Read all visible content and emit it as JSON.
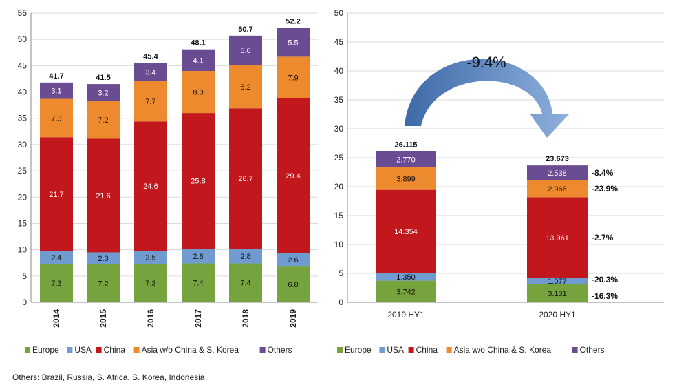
{
  "colors": {
    "Europe": "#77a33e",
    "USA": "#6f9bd1",
    "China": "#c2171d",
    "Asia w/o China & S. Korea": "#ee8a2e",
    "Others": "#6a4c93",
    "grid": "#d9d9d9",
    "arrow_light": "#8fb0dc",
    "arrow_dark": "#3d6aa8"
  },
  "chart_data": [
    {
      "type": "bar",
      "stacked": true,
      "categories": [
        "2014",
        "2015",
        "2016",
        "2017",
        "2018",
        "2019"
      ],
      "series": [
        {
          "name": "Europe",
          "values": [
            7.3,
            7.2,
            7.3,
            7.4,
            7.4,
            6.8
          ],
          "labels": [
            "7.3",
            "7.2",
            "7.3",
            "7.4",
            "7.4",
            "6.8"
          ]
        },
        {
          "name": "USA",
          "values": [
            2.4,
            2.3,
            2.5,
            2.8,
            2.8,
            2.6
          ],
          "labels": [
            "2.4",
            "2.3",
            "2.5",
            "2.8",
            "2.8",
            "2.6"
          ]
        },
        {
          "name": "China",
          "values": [
            21.7,
            21.6,
            24.6,
            25.8,
            26.7,
            29.4
          ],
          "labels": [
            "21.7",
            "21.6",
            "24.6",
            "25.8",
            "26.7",
            "29.4"
          ]
        },
        {
          "name": "Asia w/o China & S. Korea",
          "values": [
            7.3,
            7.2,
            7.7,
            8.0,
            8.2,
            7.9
          ],
          "labels": [
            "7.3",
            "7.2",
            "7.7",
            "8.0",
            "8.2",
            "7.9"
          ]
        },
        {
          "name": "Others",
          "values": [
            3.1,
            3.2,
            3.4,
            4.1,
            5.6,
            5.5
          ],
          "labels": [
            "3.1",
            "3.2",
            "3.4",
            "4.1",
            "5.6",
            "5.5"
          ]
        }
      ],
      "totals": [
        "41.7",
        "41.5",
        "45.4",
        "48.1",
        "50.7",
        "52.2"
      ],
      "ylim": [
        0,
        55
      ],
      "yticks": [
        "0",
        "5",
        "10",
        "15",
        "20",
        "25",
        "30",
        "35",
        "40",
        "45",
        "50",
        "55"
      ],
      "grid": true,
      "legend": [
        "Europe",
        "USA",
        "China",
        "Asia w/o China & S. Korea",
        "Others"
      ],
      "legend_position": "bottom"
    },
    {
      "type": "bar",
      "stacked": true,
      "categories": [
        "2019 HY1",
        "2020 HY1"
      ],
      "series": [
        {
          "name": "Europe",
          "values": [
            3.742,
            3.131
          ],
          "labels": [
            "3.742",
            "3.131"
          ]
        },
        {
          "name": "USA",
          "values": [
            1.35,
            1.077
          ],
          "labels": [
            "1.350",
            "1.077"
          ]
        },
        {
          "name": "China",
          "values": [
            14.354,
            13.961
          ],
          "labels": [
            "14.354",
            "13.961"
          ]
        },
        {
          "name": "Asia w/o China & S. Korea",
          "values": [
            3.899,
            2.966
          ],
          "labels": [
            "3.899",
            "2.966"
          ]
        },
        {
          "name": "Others",
          "values": [
            2.77,
            2.538
          ],
          "labels": [
            "2.770",
            "2.538"
          ]
        }
      ],
      "totals": [
        "26.115",
        "23.673"
      ],
      "change_labels": [
        "-16.3%",
        "-20.3%",
        "-2.7%",
        "-23.9%",
        "-8.4%"
      ],
      "arrow_label": "-9.4%",
      "ylim": [
        0,
        50
      ],
      "yticks": [
        "0",
        "5",
        "10",
        "15",
        "20",
        "25",
        "30",
        "35",
        "40",
        "45",
        "50"
      ],
      "grid": true,
      "legend": [
        "Europe",
        "USA",
        "China",
        "Asia w/o China & S. Korea",
        "Others"
      ],
      "legend_position": "bottom"
    }
  ],
  "footnote": "Others: Brazil, Russia, S. Africa, S. Korea, Indonesia"
}
